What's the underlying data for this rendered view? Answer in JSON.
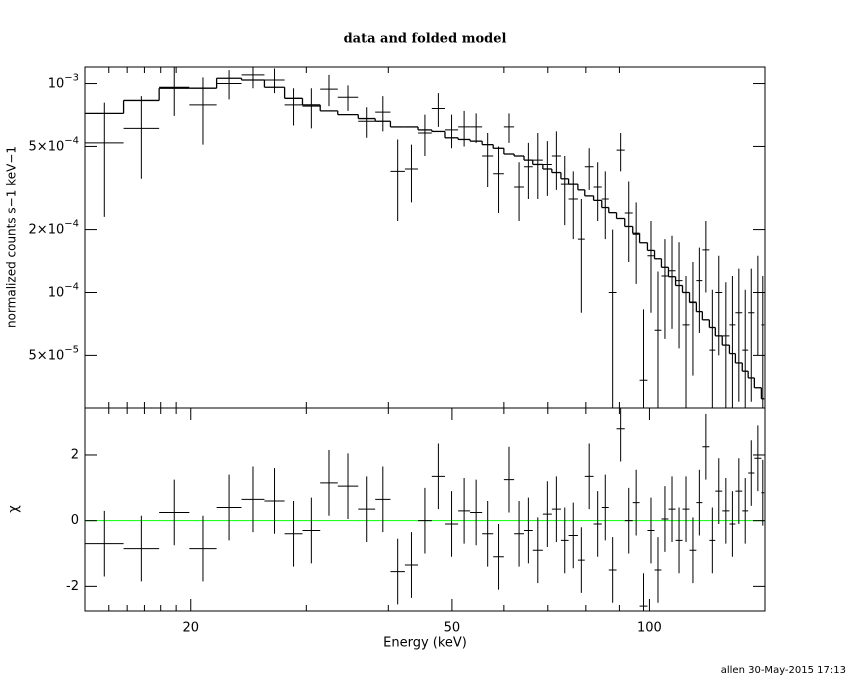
{
  "chart_data": [
    {
      "type": "errorbar",
      "title": "data and folded model",
      "ylabel": "normalized counts s−1 keV−1",
      "xlog": true,
      "ylog": true,
      "xlim": [
        13.8,
        150
      ],
      "ylim": [
        2.8e-05,
        0.0012
      ],
      "xminorticks": [
        15,
        16,
        17,
        18,
        19,
        30,
        40,
        60,
        70,
        80,
        90
      ],
      "yticks": [
        {
          "value": 0.001,
          "label": "10−3"
        },
        {
          "value": 0.0005,
          "label": "5×10−4"
        },
        {
          "value": 0.0002,
          "label": "2×10−4"
        },
        {
          "value": 0.0001,
          "label": "10−4"
        },
        {
          "value": 5e-05,
          "label": "5×10−5"
        }
      ],
      "bins": [
        13.8,
        15.8,
        17.9,
        19.9,
        21.9,
        23.9,
        25.9,
        27.8,
        29.6,
        31.5,
        33.5,
        36.0,
        38.2,
        40.3,
        42.4,
        44.4,
        46.6,
        48.8,
        51.1,
        53.3,
        55.6,
        57.8,
        60.0,
        62.2,
        64.4,
        66.4,
        68.8,
        71.0,
        73.3,
        75.3,
        77.8,
        79.7,
        82.2,
        84.6,
        86.7,
        89.1,
        91.7,
        94.3,
        96.6,
        99.3,
        101.8,
        104.3,
        106.9,
        109.6,
        112.3,
        115.1,
        117.9,
        120.4,
        123.4,
        126.0,
        129.1,
        132.4,
        135.2,
        138.5,
        141.4,
        144.5,
        148.1,
        149.6
      ],
      "data": {
        "color": "#000000",
        "values": [
          0.00052,
          0.00061,
          0.00096,
          0.00079,
          0.001,
          0.0011,
          0.00104,
          0.00079,
          0.00078,
          0.00094,
          0.00086,
          0.00066,
          0.00073,
          0.00038,
          0.00039,
          0.00058,
          0.00076,
          0.0006,
          0.00062,
          0.00062,
          0.00045,
          0.00037,
          0.00062,
          0.00032,
          0.0004,
          0.00043,
          0.00041,
          0.00045,
          0.00033,
          0.00028,
          0.00018,
          0.0004,
          0.00032,
          0.00028,
          0.0001,
          0.00048,
          0.00024,
          0.00019,
          3.8e-05,
          0.00015,
          6.6e-05,
          0.00012,
          0.000127,
          0.000114,
          7e-05,
          9e-05,
          0.000114,
          0.00016,
          5.3e-05,
          0.0001,
          6.2e-05,
          7e-05,
          8e-05,
          5.3e-05,
          8e-05,
          0.0001,
          7e-05
        ],
        "errors": [
          0.00029,
          0.00026,
          0.00026,
          0.00028,
          0.00016,
          0.00015,
          0.00014,
          0.00016,
          0.00017,
          0.00016,
          0.00012,
          0.00011,
          0.00014,
          0.00016,
          0.00012,
          0.00013,
          0.00014,
          0.00011,
          0.00012,
          0.0001,
          0.00013,
          0.00013,
          0.0001,
          0.0001,
          0.00012,
          0.00015,
          0.00012,
          0.00014,
          0.00012,
          0.0001,
          0.0001,
          9e-05,
          0.0001,
          0.0001,
          0.0001,
          0.0001,
          0.0001,
          8e-05,
          4.5e-05,
          7e-05,
          6e-05,
          6e-05,
          6e-05,
          6e-05,
          5e-05,
          5e-05,
          5e-05,
          6e-05,
          5e-05,
          5e-05,
          5e-05,
          5e-05,
          5e-05,
          5e-05,
          5e-05,
          5e-05,
          5e-05
        ]
      },
      "model": {
        "color": "#000000",
        "values": [
          0.00072,
          0.00083,
          0.00095,
          0.00095,
          0.00106,
          0.00104,
          0.00096,
          0.00085,
          0.00079,
          0.00074,
          0.00071,
          0.00068,
          0.00066,
          0.00062,
          0.00062,
          0.0006,
          0.00059,
          0.00055,
          0.00054,
          0.00053,
          0.00051,
          0.00049,
          0.00046,
          0.00045,
          0.00043,
          0.00041,
          0.00039,
          0.000375,
          0.00035,
          0.00033,
          0.00031,
          0.00029,
          0.000276,
          0.000255,
          0.000241,
          0.000226,
          0.000207,
          0.000192,
          0.000173,
          0.000159,
          0.000145,
          0.000132,
          0.000119,
          0.000108,
          0.0001,
          8.96e-05,
          8.1e-05,
          7.4e-05,
          6.8e-05,
          6.2e-05,
          5.6e-05,
          5.1e-05,
          4.6e-05,
          4.2e-05,
          3.9e-05,
          3.5e-05,
          3.1e-05
        ]
      }
    },
    {
      "type": "errorbar",
      "xlabel": "Energy (keV)",
      "ylabel": "χ",
      "xlog": true,
      "ylog": false,
      "xlim": [
        13.8,
        150
      ],
      "ylim": [
        -2.75,
        3.43
      ],
      "xticks": [
        20,
        50,
        100
      ],
      "xminorticks": [
        15,
        16,
        17,
        18,
        19,
        30,
        40,
        60,
        70,
        80,
        90
      ],
      "yticks": [
        -2,
        0,
        2
      ],
      "hline": {
        "value": 0,
        "color": "#00ff00"
      },
      "bins": [
        13.8,
        15.8,
        17.9,
        19.9,
        21.9,
        23.9,
        25.9,
        27.8,
        29.6,
        31.5,
        33.5,
        36.0,
        38.2,
        40.3,
        42.4,
        44.4,
        46.6,
        48.8,
        51.1,
        53.3,
        55.6,
        57.8,
        60.0,
        62.2,
        64.4,
        66.4,
        68.8,
        71.0,
        73.3,
        75.3,
        77.8,
        79.7,
        82.2,
        84.6,
        86.7,
        89.1,
        91.7,
        94.3,
        96.6,
        99.3,
        101.8,
        104.3,
        106.9,
        109.6,
        112.3,
        115.1,
        117.9,
        120.4,
        123.4,
        126.0,
        129.1,
        132.4,
        135.2,
        138.5,
        141.4,
        144.5,
        148.1,
        149.6
      ],
      "data": {
        "color": "#000000",
        "values": [
          -0.7,
          -0.85,
          0.25,
          -0.85,
          0.4,
          0.65,
          0.6,
          -0.4,
          -0.3,
          1.15,
          1.05,
          0.35,
          0.65,
          -1.55,
          -1.35,
          0,
          1.35,
          -0.1,
          0.3,
          0.25,
          -0.4,
          -1.1,
          1.25,
          -0.4,
          -0.3,
          -0.9,
          0.2,
          0.35,
          -0.6,
          -0.45,
          -1.2,
          1.35,
          -0.1,
          0.4,
          -1.5,
          2.8,
          0,
          0.55,
          -2.6,
          -0.3,
          -1.5,
          0.05,
          0.35,
          -0.6,
          0.35,
          -0.9,
          0.55,
          2.25,
          -0.6,
          0.9,
          0.3,
          -0.1,
          0.9,
          0.3,
          1.45,
          1.9,
          0.85
        ],
        "errors": [
          1,
          1,
          1,
          1,
          1,
          1,
          1,
          1,
          1,
          1,
          1,
          1,
          1,
          1,
          1,
          1,
          1,
          1,
          1,
          1,
          1,
          1,
          1,
          1,
          1,
          1,
          1,
          1,
          1,
          1,
          1,
          1,
          1,
          1,
          1,
          1,
          1,
          1,
          1,
          1,
          1,
          1,
          1,
          1,
          1,
          1,
          1,
          1,
          1,
          1,
          1,
          1,
          1,
          1,
          1,
          1,
          1
        ]
      }
    }
  ],
  "footer": "allen 30-May-2015 17:13"
}
